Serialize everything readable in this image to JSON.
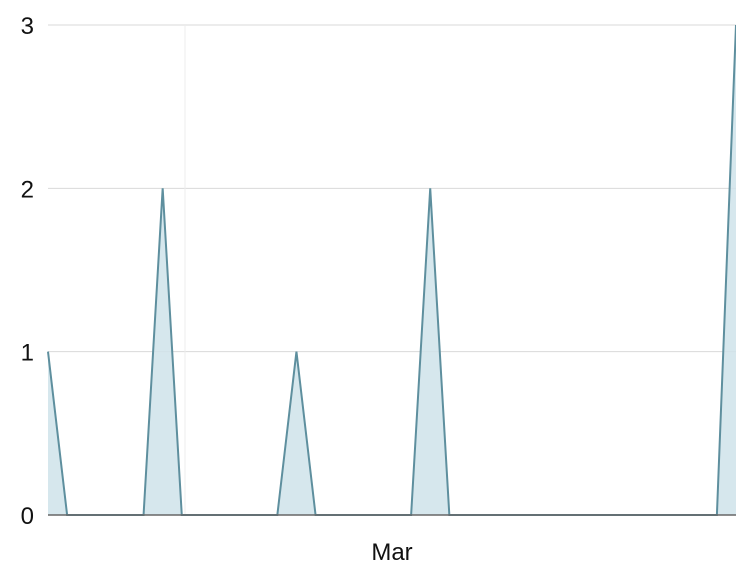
{
  "chart_data": {
    "type": "area",
    "title": "",
    "xlabel": "",
    "ylabel": "",
    "ylim": [
      0,
      3
    ],
    "xlim": [
      "2016-02-12",
      "2016-03-19"
    ],
    "y_ticks": [
      "0",
      "1",
      "2",
      "3"
    ],
    "x_ticks": [
      {
        "date": "2016-03-01",
        "label": "Mar"
      }
    ],
    "grid": true,
    "series": [
      {
        "x": [
          "2016-02-12",
          "2016-02-13",
          "2016-02-17",
          "2016-02-18",
          "2016-02-19",
          "2016-02-24",
          "2016-02-25",
          "2016-02-26",
          "2016-03-02",
          "2016-03-03",
          "2016-03-04",
          "2016-03-18",
          "2016-03-19"
        ],
        "y": [
          1,
          0,
          0,
          2,
          0,
          0,
          1,
          0,
          0,
          2,
          0,
          0,
          3
        ]
      }
    ],
    "colors": {
      "line": "#5e8f9e",
      "fill": "#cfe3ea",
      "grid": "#d9d9d9",
      "axis": "#666666"
    }
  }
}
